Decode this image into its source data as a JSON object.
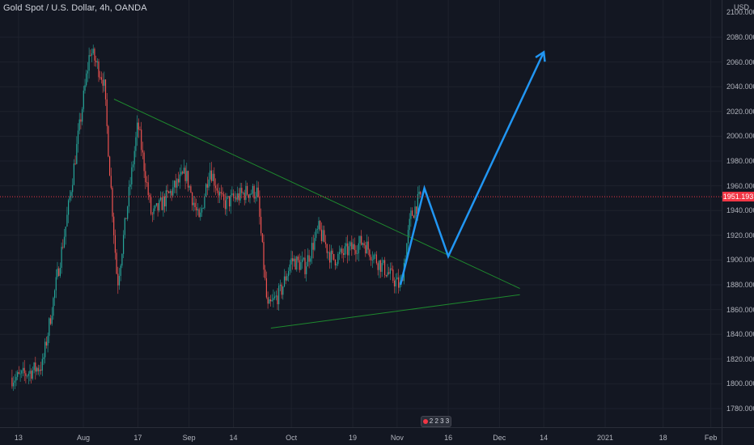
{
  "header": {
    "title": "Gold Spot / U.S. Dollar, 4h, OANDA",
    "currency": "USD"
  },
  "nav_badge": {
    "label": "2 2 3 3"
  },
  "chart_data": {
    "type": "candlestick",
    "title": "Gold Spot / U.S. Dollar, 4h, OANDA",
    "y_ticks": [
      1780,
      1800,
      1820,
      1840,
      1860,
      1880,
      1900,
      1920,
      1940,
      1960,
      1980,
      2000,
      2020,
      2040,
      2060,
      2080
    ],
    "y_tick_labels": [
      "1780.000",
      "1800.000",
      "1820.000",
      "1840.000",
      "1860.000",
      "1880.000",
      "1900.000",
      "1920.000",
      "1940.000",
      "1960.000",
      "1980.000",
      "2000.000",
      "2020.000",
      "2040.000",
      "2060.000",
      "2080.000"
    ],
    "top_axis_label": "2100.000",
    "ylim": [
      1768,
      2108
    ],
    "x_tick_labels": [
      "13",
      "Aug",
      "17",
      "Sep",
      "14",
      "Oct",
      "19",
      "Nov",
      "16",
      "Dec",
      "14",
      "2021",
      "18",
      "Feb"
    ],
    "last_price": 1951.193,
    "last_price_label": "1951.193",
    "price_path": [
      [
        "2020-07-13",
        1805
      ],
      [
        "2020-07-20",
        1815
      ],
      [
        "2020-07-27",
        1930
      ],
      [
        "2020-08-03",
        2070
      ],
      [
        "2020-08-07",
        2045
      ],
      [
        "2020-08-11",
        1880
      ],
      [
        "2020-08-17",
        2010
      ],
      [
        "2020-08-21",
        1935
      ],
      [
        "2020-08-31",
        1970
      ],
      [
        "2020-09-04",
        1930
      ],
      [
        "2020-09-07",
        1975
      ],
      [
        "2020-09-11",
        1945
      ],
      [
        "2020-09-18",
        1955
      ],
      [
        "2020-09-21",
        1955
      ],
      [
        "2020-09-24",
        1860
      ],
      [
        "2020-09-28",
        1875
      ],
      [
        "2020-10-01",
        1900
      ],
      [
        "2020-10-05",
        1895
      ],
      [
        "2020-10-09",
        1925
      ],
      [
        "2020-10-13",
        1900
      ],
      [
        "2020-10-19",
        1910
      ],
      [
        "2020-10-22",
        1915
      ],
      [
        "2020-10-26",
        1900
      ],
      [
        "2020-11-02",
        1878
      ],
      [
        "2020-11-05",
        1935
      ],
      [
        "2020-11-08",
        1952
      ]
    ],
    "series_color_up": "#26a69a",
    "series_color_down": "#ef5350",
    "trendlines": [
      {
        "from": [
          "2020-08-10",
          2030
        ],
        "to": [
          "2020-12-07",
          1877
        ],
        "color": "#1e8a2e"
      },
      {
        "from": [
          "2020-09-25",
          1845
        ],
        "to": [
          "2020-12-07",
          1872
        ],
        "color": "#1e8a2e"
      }
    ],
    "projection": {
      "color": "#2196f3",
      "points": [
        [
          "2020-11-02",
          1880
        ],
        [
          "2020-11-09",
          1958
        ],
        [
          "2020-11-16",
          1903
        ],
        [
          "2020-12-14",
          2068
        ]
      ]
    },
    "grid": true
  }
}
